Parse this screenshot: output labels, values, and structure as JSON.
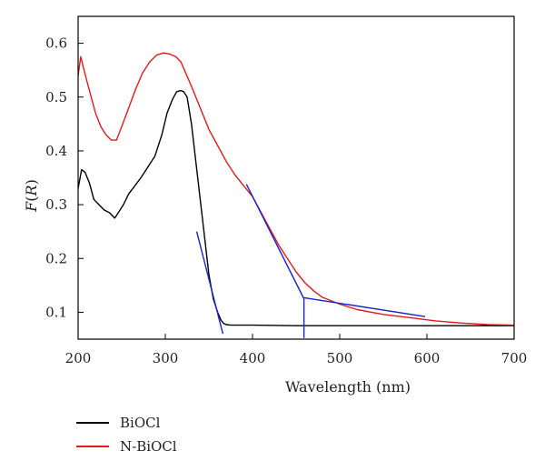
{
  "chart_data": {
    "type": "line",
    "xlabel": "Wavelength (nm)",
    "ylabel_main": "F",
    "ylabel_var": "R",
    "xlim": [
      200,
      700
    ],
    "ylim": [
      0.05,
      0.65
    ],
    "x_ticks": [
      200,
      300,
      400,
      500,
      600,
      700
    ],
    "y_ticks": [
      0.1,
      0.2,
      0.3,
      0.4,
      0.5,
      0.6
    ],
    "y_tick_labels": [
      "0.1",
      "0.2",
      "0.3",
      "0.4",
      "0.5",
      "0.6"
    ],
    "legend_position": "bottom-left",
    "series": [
      {
        "name": "BiOCl",
        "color": "#000000",
        "x": [
          200,
          204,
          208,
          213,
          218,
          224,
          230,
          236,
          242,
          246,
          252,
          258,
          265,
          272,
          280,
          288,
          296,
          302,
          308,
          313,
          318,
          321,
          325,
          330,
          335,
          340,
          345,
          350,
          355,
          360,
          364,
          367,
          370,
          375,
          380,
          390,
          400,
          450,
          500,
          550,
          600,
          650,
          700
        ],
        "y": [
          0.33,
          0.365,
          0.36,
          0.34,
          0.31,
          0.3,
          0.29,
          0.285,
          0.275,
          0.285,
          0.3,
          0.32,
          0.335,
          0.35,
          0.37,
          0.39,
          0.43,
          0.47,
          0.495,
          0.51,
          0.512,
          0.51,
          0.5,
          0.45,
          0.38,
          0.31,
          0.24,
          0.17,
          0.125,
          0.1,
          0.085,
          0.079,
          0.077,
          0.076,
          0.076,
          0.076,
          0.076,
          0.075,
          0.075,
          0.075,
          0.075,
          0.075,
          0.075
        ]
      },
      {
        "name": "N-BiOCl",
        "color": "#e31a1c",
        "x": [
          200,
          203,
          206,
          210,
          215,
          220,
          226,
          232,
          238,
          244,
          250,
          258,
          266,
          274,
          282,
          290,
          298,
          305,
          312,
          318,
          322,
          330,
          340,
          350,
          360,
          370,
          380,
          390,
          400,
          410,
          420,
          430,
          440,
          450,
          460,
          470,
          480,
          500,
          520,
          550,
          580,
          610,
          640,
          670,
          700
        ],
        "y": [
          0.54,
          0.575,
          0.555,
          0.53,
          0.5,
          0.47,
          0.445,
          0.43,
          0.42,
          0.42,
          0.445,
          0.48,
          0.515,
          0.545,
          0.565,
          0.578,
          0.582,
          0.58,
          0.575,
          0.565,
          0.55,
          0.52,
          0.48,
          0.44,
          0.41,
          0.38,
          0.355,
          0.335,
          0.315,
          0.285,
          0.255,
          0.225,
          0.2,
          0.175,
          0.155,
          0.14,
          0.128,
          0.115,
          0.105,
          0.096,
          0.09,
          0.084,
          0.08,
          0.077,
          0.076
        ]
      }
    ],
    "annotations": [
      {
        "name": "tangent-biocl",
        "color": "#1a23cc",
        "points": [
          [
            336,
            0.25
          ],
          [
            366,
            0.06
          ]
        ]
      },
      {
        "name": "tangent-nbiocl-slope",
        "color": "#1a23cc",
        "points": [
          [
            393,
            0.338
          ],
          [
            459,
            0.125
          ]
        ]
      },
      {
        "name": "baseline-nbiocl",
        "color": "#1a23cc",
        "points": [
          [
            459,
            0.127
          ],
          [
            598,
            0.092
          ]
        ]
      },
      {
        "name": "drop-nbiocl",
        "color": "#1a23cc",
        "points": [
          [
            459,
            0.125
          ],
          [
            459,
            0.052
          ]
        ]
      }
    ]
  }
}
